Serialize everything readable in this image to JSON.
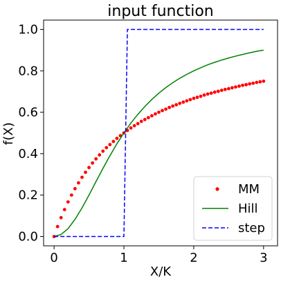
{
  "chart_data": {
    "type": "line",
    "title": "input function",
    "xlabel": "X/K",
    "ylabel": "f(X)",
    "xlim": [
      -0.15,
      3.2
    ],
    "ylim": [
      -0.045,
      1.045
    ],
    "xticks": [
      0,
      1,
      2,
      3
    ],
    "xtick_labels": [
      "0",
      "1",
      "2",
      "3"
    ],
    "yticks": [
      0.0,
      0.2,
      0.4,
      0.6,
      0.8,
      1.0
    ],
    "ytick_labels": [
      "0.0",
      "0.2",
      "0.4",
      "0.6",
      "0.8",
      "1.0"
    ],
    "grid": false,
    "legend_position": "lower-right",
    "series": [
      {
        "name": "MM",
        "style": "dots",
        "color": "#ff0000",
        "x": [
          0,
          0.05,
          0.1,
          0.15,
          0.2,
          0.25,
          0.3,
          0.35,
          0.4,
          0.45,
          0.5,
          0.55,
          0.6,
          0.65,
          0.7,
          0.75,
          0.8,
          0.85,
          0.9,
          0.95,
          1.0,
          1.05,
          1.1,
          1.15,
          1.2,
          1.25,
          1.3,
          1.35,
          1.4,
          1.45,
          1.5,
          1.55,
          1.6,
          1.65,
          1.7,
          1.75,
          1.8,
          1.85,
          1.9,
          1.95,
          2.0,
          2.05,
          2.1,
          2.15,
          2.2,
          2.25,
          2.3,
          2.35,
          2.4,
          2.45,
          2.5,
          2.55,
          2.6,
          2.65,
          2.7,
          2.75,
          2.8,
          2.85,
          2.9,
          2.95,
          3.0
        ],
        "y": [
          0,
          0.048,
          0.091,
          0.13,
          0.167,
          0.2,
          0.231,
          0.259,
          0.286,
          0.31,
          0.333,
          0.355,
          0.375,
          0.394,
          0.412,
          0.429,
          0.444,
          0.459,
          0.474,
          0.487,
          0.5,
          0.512,
          0.524,
          0.535,
          0.545,
          0.556,
          0.565,
          0.574,
          0.583,
          0.592,
          0.6,
          0.608,
          0.615,
          0.623,
          0.63,
          0.636,
          0.643,
          0.649,
          0.655,
          0.661,
          0.667,
          0.672,
          0.677,
          0.683,
          0.688,
          0.692,
          0.697,
          0.701,
          0.706,
          0.71,
          0.714,
          0.718,
          0.722,
          0.726,
          0.73,
          0.733,
          0.737,
          0.74,
          0.744,
          0.747,
          0.75
        ]
      },
      {
        "name": "Hill",
        "style": "solid",
        "color": "#008000",
        "x": [
          0,
          0.1,
          0.2,
          0.3,
          0.4,
          0.5,
          0.6,
          0.7,
          0.8,
          0.9,
          1.0,
          1.1,
          1.2,
          1.3,
          1.4,
          1.5,
          1.6,
          1.7,
          1.8,
          1.9,
          2.0,
          2.1,
          2.2,
          2.3,
          2.4,
          2.5,
          2.6,
          2.7,
          2.8,
          2.9,
          3.0
        ],
        "y": [
          0,
          0.01,
          0.038,
          0.083,
          0.138,
          0.2,
          0.265,
          0.329,
          0.39,
          0.448,
          0.5,
          0.548,
          0.59,
          0.628,
          0.662,
          0.692,
          0.719,
          0.743,
          0.764,
          0.783,
          0.8,
          0.815,
          0.829,
          0.841,
          0.852,
          0.862,
          0.871,
          0.879,
          0.887,
          0.894,
          0.9
        ]
      },
      {
        "name": "step",
        "style": "dashed",
        "color": "#0000ff",
        "x": [
          0,
          1.0,
          1.05,
          3.0
        ],
        "y": [
          0,
          0,
          1,
          1
        ]
      }
    ]
  }
}
